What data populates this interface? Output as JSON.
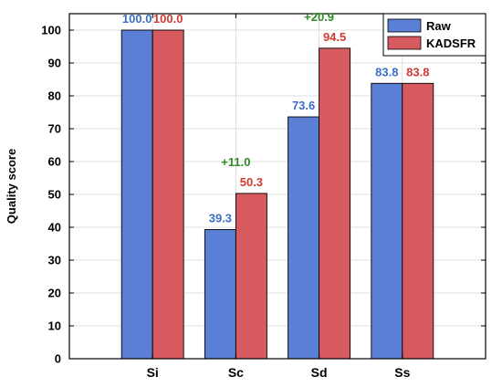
{
  "chart_data": {
    "type": "bar",
    "title": "",
    "xlabel": "",
    "ylabel": "Quality score",
    "ylim": [
      0,
      105
    ],
    "yticks": [
      0,
      10,
      20,
      30,
      40,
      50,
      60,
      70,
      80,
      90,
      100
    ],
    "categories": [
      "Si",
      "Sc",
      "Sd",
      "Ss"
    ],
    "grid": true,
    "legend_position": "top-right",
    "series": [
      {
        "name": "Raw",
        "values": [
          100.0,
          39.3,
          73.6,
          83.8
        ],
        "labels": [
          "100.0",
          "39.3",
          "73.6",
          "83.8"
        ],
        "color": "#5b7fd4",
        "label_color": "#3a6fc4"
      },
      {
        "name": "KADSFR",
        "values": [
          100.0,
          50.3,
          94.5,
          83.8
        ],
        "labels": [
          "100.0",
          "50.3",
          "94.5",
          "83.8"
        ],
        "color": "#d65a5e",
        "label_color": "#d03a30"
      }
    ],
    "annotations": [
      {
        "category": "Sc",
        "text": "+11.0",
        "color": "#2e8b22"
      },
      {
        "category": "Sd",
        "text": "+20.9",
        "color": "#2e8b22"
      }
    ]
  }
}
